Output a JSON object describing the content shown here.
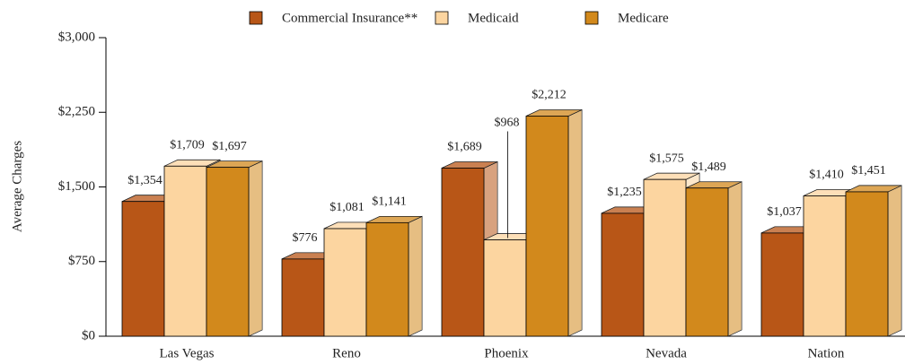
{
  "chart_data": {
    "type": "bar3d",
    "y_label": "Average Charges",
    "categories": [
      "Las Vegas",
      "Reno",
      "Phoenix",
      "Nevada",
      "Nation"
    ],
    "series": [
      {
        "name": "Commercial Insurance**",
        "color": "#b85617",
        "values": [
          1354,
          776,
          1689,
          1235,
          1037
        ],
        "value_labels": [
          "$1,354",
          "$776",
          "$1,689",
          "$1,235",
          "$1,037"
        ]
      },
      {
        "name": "Medicaid",
        "color": "#fcd5a0",
        "values": [
          1709,
          1081,
          968,
          1575,
          1410
        ],
        "value_labels": [
          "$1,709",
          "$1,081",
          "$968",
          "$1,575",
          "$1,410"
        ]
      },
      {
        "name": "Medicare",
        "color": "#d2891c",
        "values": [
          1697,
          1141,
          2212,
          1489,
          1451
        ],
        "value_labels": [
          "$1,697",
          "$1,141",
          "$2,212",
          "$1,489",
          "$1,451"
        ]
      }
    ],
    "ylim": [
      0,
      3000
    ],
    "yticks": [
      {
        "value": 0,
        "label": "$0"
      },
      {
        "value": 750,
        "label": "$750"
      },
      {
        "value": 1500,
        "label": "$1,500"
      },
      {
        "value": 2250,
        "label": "$2,250"
      },
      {
        "value": 3000,
        "label": "$3,000"
      }
    ],
    "legend": "top"
  }
}
